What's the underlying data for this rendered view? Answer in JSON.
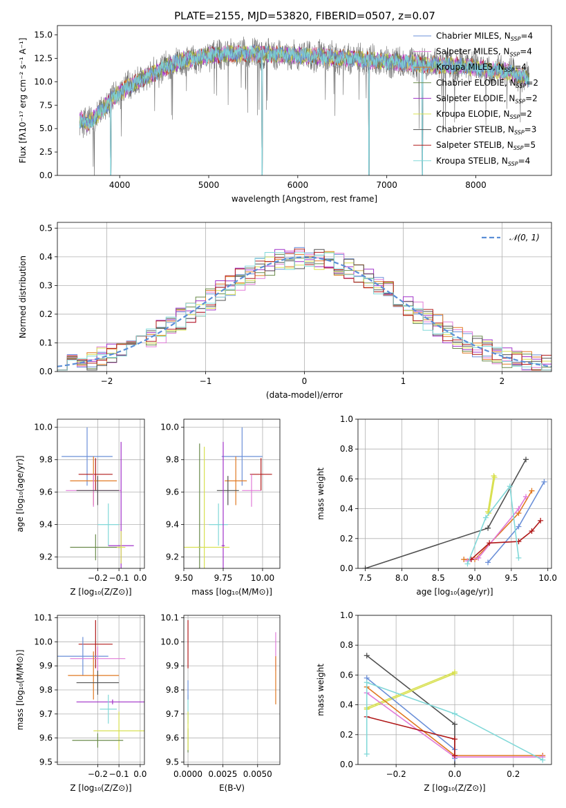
{
  "figure_title": "PLATE=2155, MJD=53820, FIBERID=0507, z=0.07",
  "colors": {
    "cm": "#6a8fd8",
    "sm": "#e07ad8",
    "km": "#e07820",
    "ce": "#6a8a4a",
    "se": "#a030c8",
    "ke": "#d8e050",
    "cs": "#505050",
    "ss": "#b01818",
    "ks": "#80d8d8",
    "gauss": "#5b8ed6"
  },
  "legend_spectrum": [
    {
      "key": "cm",
      "label": "Chabrier MILES, N",
      "n": "=4"
    },
    {
      "key": "sm",
      "label": "Salpeter MILES, N",
      "n": "=4"
    },
    {
      "key": "km",
      "label": "Kroupa MILES, N",
      "n": "=4"
    },
    {
      "key": "ce",
      "label": "Chabrier ELODIE, N",
      "n": "=2"
    },
    {
      "key": "se",
      "label": "Salpeter ELODIE, N",
      "n": "=2"
    },
    {
      "key": "ke",
      "label": "Kroupa ELODIE, N",
      "n": "=2"
    },
    {
      "key": "cs",
      "label": "Chabrier STELIB, N",
      "n": "=3"
    },
    {
      "key": "ss",
      "label": "Salpeter STELIB, N",
      "n": "=5"
    },
    {
      "key": "ks",
      "label": "Kroupa STELIB, N",
      "n": "=4"
    }
  ],
  "legend_sub": "SSP",
  "gauss_label": "𝒩(0, 1)",
  "chart_data": [
    {
      "id": "spectrum",
      "type": "line",
      "xlabel": "wavelength [Angstrom, rest frame]",
      "ylabel": "Flux [fλ10⁻¹⁷ erg cm⁻² s⁻¹ A⁻¹]",
      "xlim": [
        3300,
        8850
      ],
      "ylim": [
        0,
        16
      ],
      "xticks": [
        4000,
        5000,
        6000,
        7000,
        8000
      ],
      "yticks": [
        0.0,
        2.5,
        5.0,
        7.5,
        10.0,
        12.5,
        15.0
      ],
      "continuum": [
        [
          3550,
          6
        ],
        [
          3650,
          5.5
        ],
        [
          3800,
          7
        ],
        [
          3950,
          8.5
        ],
        [
          4100,
          9.5
        ],
        [
          4300,
          10.5
        ],
        [
          4500,
          11.5
        ],
        [
          4700,
          12.3
        ],
        [
          5000,
          12.8
        ],
        [
          5300,
          13
        ],
        [
          5600,
          13
        ],
        [
          6000,
          12.8
        ],
        [
          6400,
          12.6
        ],
        [
          6800,
          12.3
        ],
        [
          7200,
          12
        ],
        [
          7500,
          11.8
        ],
        [
          7800,
          11.7
        ],
        [
          8100,
          11.4
        ],
        [
          8400,
          11
        ],
        [
          8600,
          10.2
        ]
      ],
      "dips": [
        [
          3900,
          0
        ],
        [
          5600,
          0
        ],
        [
          6800,
          0
        ],
        [
          7400,
          0
        ]
      ]
    },
    {
      "id": "hist",
      "type": "line",
      "xlabel": "(data-model)/error",
      "ylabel": "Normed distribution",
      "xlim": [
        -2.5,
        2.5
      ],
      "ylim": [
        0,
        0.52
      ],
      "xticks": [
        -2,
        -1,
        0,
        1,
        2
      ],
      "yticks": [
        0.0,
        0.1,
        0.2,
        0.3,
        0.4,
        0.5
      ],
      "grid": true,
      "legend": "top-right"
    },
    {
      "id": "age_z",
      "type": "scatter",
      "xlabel": "Z [log₁₀(Z/Z⊙)]",
      "ylabel": "age  [log₁₀(age/yr)]",
      "xlim": [
        -0.39,
        0.02
      ],
      "ylim": [
        9.13,
        10.05
      ],
      "xticks": [
        -0.2,
        -0.1,
        0.0
      ],
      "yticks": [
        9.2,
        9.4,
        9.6,
        9.8,
        10.0
      ],
      "points": [
        {
          "key": "cm",
          "x": -0.25,
          "y": 9.82,
          "xerr": 0.12,
          "yerr": 0.18
        },
        {
          "key": "ss",
          "x": -0.21,
          "y": 9.71,
          "xerr": 0.08,
          "yerr": 0.1
        },
        {
          "key": "km",
          "x": -0.22,
          "y": 9.67,
          "xerr": 0.11,
          "yerr": 0.15
        },
        {
          "key": "sm",
          "x": -0.22,
          "y": 9.61,
          "xerr": 0.13,
          "yerr": 0.1
        },
        {
          "key": "cs",
          "x": -0.2,
          "y": 9.61,
          "xerr": 0.1,
          "yerr": 0.09
        },
        {
          "key": "ks",
          "x": -0.15,
          "y": 9.4,
          "xerr": 0.05,
          "yerr": 0.13
        },
        {
          "key": "se",
          "x": -0.09,
          "y": 9.27,
          "xerr": 0.06,
          "yerr": 0.64
        },
        {
          "key": "ce",
          "x": -0.21,
          "y": 9.26,
          "xerr": 0.12,
          "yerr": 0.08
        },
        {
          "key": "ke",
          "x": -0.09,
          "y": 9.26,
          "xerr": 0.02,
          "yerr": 0.1
        }
      ]
    },
    {
      "id": "age_mass",
      "type": "scatter",
      "xlabel": "mass [log₁₀(M/M⊙)]",
      "ylabel": "",
      "xlim": [
        9.5,
        10.11
      ],
      "ylim": [
        9.13,
        10.05
      ],
      "xticks": [
        9.5,
        9.75,
        10.0
      ],
      "yticks": [
        9.2,
        9.4,
        9.6,
        9.8,
        10.0
      ],
      "points": [
        {
          "key": "cm",
          "x": 9.87,
          "y": 9.82,
          "xerr": 0.13,
          "yerr": 0.18
        },
        {
          "key": "ss",
          "x": 9.99,
          "y": 9.71,
          "xerr": 0.07,
          "yerr": 0.1
        },
        {
          "key": "km",
          "x": 9.83,
          "y": 9.67,
          "xerr": 0.07,
          "yerr": 0.15
        },
        {
          "key": "sm",
          "x": 9.93,
          "y": 9.61,
          "xerr": 0.06,
          "yerr": 0.1
        },
        {
          "key": "cs",
          "x": 9.78,
          "y": 9.61,
          "xerr": 0.07,
          "yerr": 0.09
        },
        {
          "key": "ks",
          "x": 9.72,
          "y": 9.4,
          "xerr": 0.06,
          "yerr": 0.13
        },
        {
          "key": "se",
          "x": 9.75,
          "y": 9.27,
          "xerr": 0.01,
          "yerr": 0.64
        },
        {
          "key": "ce",
          "x": 9.6,
          "y": 9.26,
          "xerr": 0.01,
          "yerr": 0.64
        },
        {
          "key": "ke",
          "x": 9.63,
          "y": 9.26,
          "xerr": 0.16,
          "yerr": 0.62
        }
      ]
    },
    {
      "id": "mw_age",
      "type": "line",
      "xlabel": "age  [log₁₀(age/yr)]",
      "ylabel": "mass weight",
      "xlim": [
        7.4,
        10.05
      ],
      "ylim": [
        0,
        1
      ],
      "xticks": [
        7.5,
        8.0,
        8.5,
        9.0,
        9.5,
        10.0
      ],
      "yticks": [
        0.0,
        0.2,
        0.4,
        0.6,
        0.8,
        1.0
      ],
      "series": [
        {
          "key": "cs",
          "x": [
            7.5,
            9.18,
            9.7
          ],
          "y": [
            0.0,
            0.27,
            0.73
          ]
        },
        {
          "key": "ke",
          "x": [
            9.18,
            9.26
          ],
          "y": [
            0.38,
            0.62
          ]
        },
        {
          "key": "ke",
          "x": [
            9.19,
            9.27
          ],
          "y": [
            0.37,
            0.61
          ]
        },
        {
          "key": "km",
          "x": [
            8.85,
            9.0,
            9.6,
            9.78
          ],
          "y": [
            0.06,
            0.06,
            0.37,
            0.52
          ]
        },
        {
          "key": "sm",
          "x": [
            8.9,
            9.05,
            9.6,
            9.7
          ],
          "y": [
            0.05,
            0.07,
            0.4,
            0.48
          ]
        },
        {
          "key": "cm",
          "x": [
            9.18,
            9.6,
            9.95
          ],
          "y": [
            0.04,
            0.28,
            0.58
          ]
        },
        {
          "key": "ss",
          "x": [
            8.95,
            9.2,
            9.6,
            9.78,
            9.9
          ],
          "y": [
            0.06,
            0.17,
            0.18,
            0.25,
            0.32
          ]
        },
        {
          "key": "ks",
          "x": [
            8.9,
            9.15,
            9.48,
            9.6
          ],
          "y": [
            0.03,
            0.34,
            0.55,
            0.07
          ]
        }
      ]
    },
    {
      "id": "mass_z",
      "type": "scatter",
      "xlabel": "Z [log₁₀(Z/Z⊙)]",
      "ylabel": "mass [log₁₀(M/M⊙)]",
      "xlim": [
        -0.39,
        0.02
      ],
      "ylim": [
        9.49,
        10.11
      ],
      "xticks": [
        -0.2,
        -0.1,
        0.0
      ],
      "yticks": [
        9.5,
        9.6,
        9.7,
        9.8,
        9.9,
        10.0,
        10.1
      ],
      "points": [
        {
          "key": "ss",
          "x": -0.21,
          "y": 9.99,
          "xerr": 0.08,
          "yerr": 0.1
        },
        {
          "key": "cm",
          "x": -0.27,
          "y": 9.94,
          "xerr": 0.12,
          "yerr": 0.08
        },
        {
          "key": "sm",
          "x": -0.2,
          "y": 9.93,
          "xerr": 0.13,
          "yerr": 0.05
        },
        {
          "key": "km",
          "x": -0.22,
          "y": 9.86,
          "xerr": 0.12,
          "yerr": 0.1
        },
        {
          "key": "cs",
          "x": -0.2,
          "y": 9.83,
          "xerr": 0.1,
          "yerr": 0.05
        },
        {
          "key": "se",
          "x": -0.13,
          "y": 9.75,
          "xerr": 0.17,
          "yerr": 0.01
        },
        {
          "key": "ks",
          "x": -0.15,
          "y": 9.72,
          "xerr": 0.04,
          "yerr": 0.06
        },
        {
          "key": "ke",
          "x": -0.1,
          "y": 9.63,
          "xerr": 0.12,
          "yerr": 0.08
        },
        {
          "key": "ce",
          "x": -0.2,
          "y": 9.59,
          "xerr": 0.12,
          "yerr": 0.03
        }
      ]
    },
    {
      "id": "mass_ebv",
      "type": "scatter",
      "xlabel": "E(B-V)",
      "ylabel": "",
      "xlim": [
        -0.0003,
        0.0066
      ],
      "ylim": [
        9.49,
        10.11
      ],
      "xticks": [
        0.0,
        0.0025,
        0.005
      ],
      "yticks": [
        9.5,
        9.6,
        9.7,
        9.8,
        9.9,
        10.0,
        10.1
      ],
      "points": [
        {
          "key": "ss",
          "x": 0.0,
          "y": 9.99,
          "yerr": 0.1
        },
        {
          "key": "ks",
          "x": 0.0,
          "y": 9.72,
          "yerr": 0.06
        },
        {
          "key": "ce",
          "x": 0.0,
          "y": 9.59,
          "yerr": 0.05
        },
        {
          "key": "ke",
          "x": 0.0,
          "y": 9.63,
          "yerr": 0.08
        },
        {
          "key": "cm",
          "x": 0.0,
          "y": 9.8,
          "yerr": 0.04
        },
        {
          "key": "sm",
          "x": 0.0063,
          "y": 9.96,
          "yerr": 0.08
        },
        {
          "key": "km",
          "x": 0.0063,
          "y": 9.84,
          "yerr": 0.1
        }
      ]
    },
    {
      "id": "mw_z",
      "type": "line",
      "xlabel": "Z [log₁₀(Z/Z⊙)]",
      "ylabel": "mass weight",
      "xlim": [
        -0.33,
        0.33
      ],
      "ylim": [
        0,
        1
      ],
      "xticks": [
        -0.2,
        0.0,
        0.2
      ],
      "yticks": [
        0.0,
        0.2,
        0.4,
        0.6,
        0.8,
        1.0
      ],
      "series": [
        {
          "key": "cs",
          "x": [
            -0.3,
            0.0,
            0.0
          ],
          "y": [
            0.73,
            0.27,
            0.0
          ]
        },
        {
          "key": "ke",
          "x": [
            -0.3,
            0.0
          ],
          "y": [
            0.38,
            0.62
          ]
        },
        {
          "key": "ke",
          "x": [
            -0.3,
            0.0
          ],
          "y": [
            0.37,
            0.61
          ]
        },
        {
          "key": "cm",
          "x": [
            -0.3,
            0.0,
            0.0
          ],
          "y": [
            0.58,
            0.1,
            0.04
          ]
        },
        {
          "key": "km",
          "x": [
            -0.3,
            0.0,
            0.3
          ],
          "y": [
            0.52,
            0.06,
            0.06
          ]
        },
        {
          "key": "sm",
          "x": [
            -0.3,
            0.0,
            0.3
          ],
          "y": [
            0.48,
            0.05,
            0.05
          ]
        },
        {
          "key": "ss",
          "x": [
            -0.3,
            0.0,
            0.0
          ],
          "y": [
            0.32,
            0.17,
            0.06
          ]
        },
        {
          "key": "ks",
          "x": [
            -0.3,
            -0.3,
            0.0,
            0.3
          ],
          "y": [
            0.07,
            0.55,
            0.34,
            0.03
          ]
        }
      ]
    }
  ]
}
